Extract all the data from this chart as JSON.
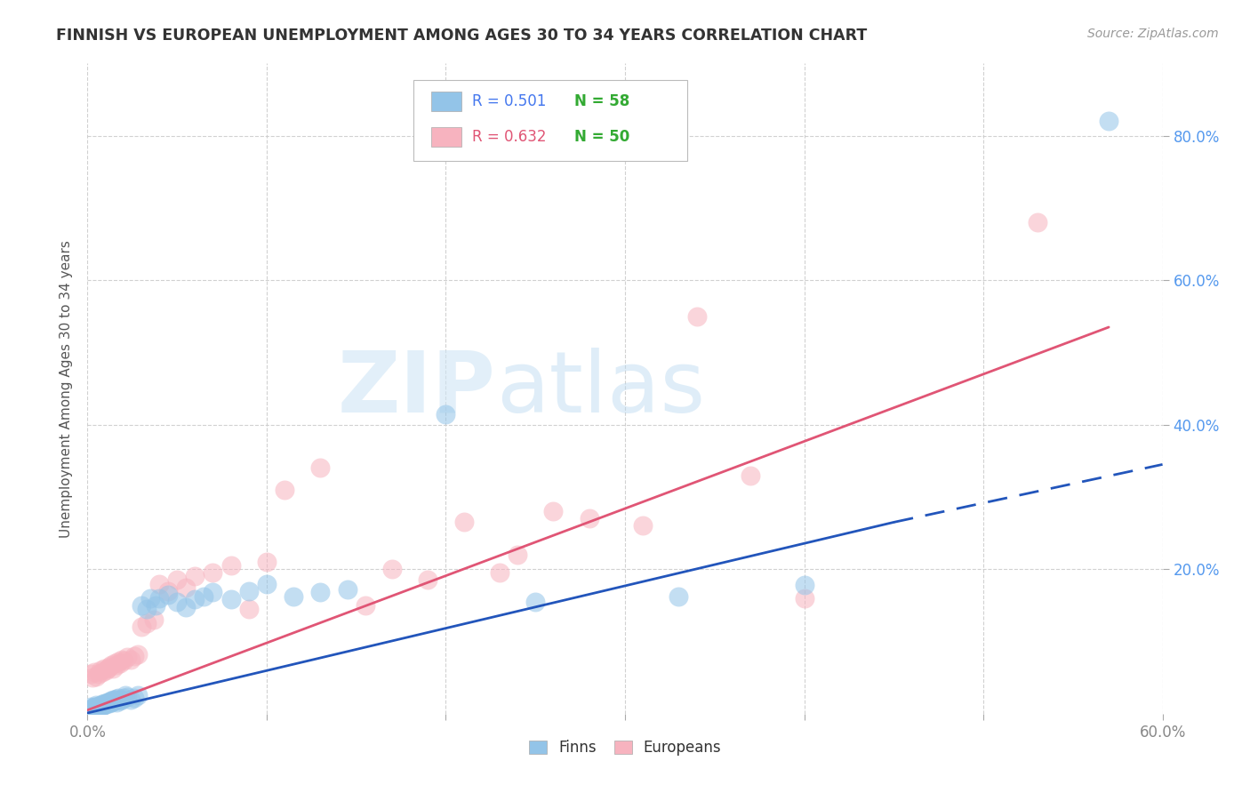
{
  "title": "FINNISH VS EUROPEAN UNEMPLOYMENT AMONG AGES 30 TO 34 YEARS CORRELATION CHART",
  "source": "Source: ZipAtlas.com",
  "ylabel": "Unemployment Among Ages 30 to 34 years",
  "xlim": [
    0.0,
    0.6
  ],
  "ylim": [
    0.0,
    0.9
  ],
  "xtick_positions": [
    0.0,
    0.1,
    0.2,
    0.3,
    0.4,
    0.5,
    0.6
  ],
  "xtick_labels_show": [
    "0.0%",
    "",
    "",
    "",
    "",
    "",
    "60.0%"
  ],
  "ytick_positions": [
    0.2,
    0.4,
    0.6,
    0.8
  ],
  "ytick_labels": [
    "20.0%",
    "40.0%",
    "60.0%",
    "80.0%"
  ],
  "finns_R": 0.501,
  "finns_N": 58,
  "europeans_R": 0.632,
  "europeans_N": 50,
  "finns_color": "#93c4e8",
  "europeans_color": "#f7b3bf",
  "finns_line_color": "#2255bb",
  "europeans_line_color": "#e05575",
  "title_color": "#333333",
  "source_color": "#999999",
  "watermark_zip_color": "#cde0f0",
  "watermark_atlas_color": "#cde0f0",
  "background_color": "#ffffff",
  "grid_color": "#cccccc",
  "finns_x": [
    0.002,
    0.003,
    0.004,
    0.005,
    0.005,
    0.006,
    0.006,
    0.007,
    0.007,
    0.008,
    0.008,
    0.009,
    0.009,
    0.01,
    0.01,
    0.011,
    0.011,
    0.012,
    0.012,
    0.013,
    0.013,
    0.014,
    0.014,
    0.015,
    0.015,
    0.016,
    0.016,
    0.017,
    0.018,
    0.019,
    0.02,
    0.021,
    0.022,
    0.024,
    0.026,
    0.028,
    0.03,
    0.033,
    0.035,
    0.038,
    0.04,
    0.045,
    0.05,
    0.055,
    0.06,
    0.065,
    0.07,
    0.08,
    0.09,
    0.1,
    0.115,
    0.13,
    0.145,
    0.2,
    0.25,
    0.33,
    0.4,
    0.57
  ],
  "finns_y": [
    0.01,
    0.008,
    0.009,
    0.012,
    0.01,
    0.009,
    0.011,
    0.01,
    0.012,
    0.011,
    0.013,
    0.012,
    0.014,
    0.013,
    0.015,
    0.014,
    0.016,
    0.015,
    0.017,
    0.016,
    0.018,
    0.017,
    0.019,
    0.018,
    0.02,
    0.016,
    0.021,
    0.022,
    0.018,
    0.02,
    0.022,
    0.025,
    0.023,
    0.02,
    0.022,
    0.025,
    0.15,
    0.145,
    0.16,
    0.15,
    0.16,
    0.165,
    0.155,
    0.148,
    0.158,
    0.162,
    0.168,
    0.158,
    0.17,
    0.18,
    0.162,
    0.168,
    0.172,
    0.415,
    0.155,
    0.162,
    0.178,
    0.82
  ],
  "europeans_x": [
    0.002,
    0.003,
    0.004,
    0.005,
    0.006,
    0.007,
    0.008,
    0.009,
    0.01,
    0.011,
    0.012,
    0.013,
    0.014,
    0.015,
    0.016,
    0.017,
    0.018,
    0.019,
    0.02,
    0.022,
    0.024,
    0.026,
    0.028,
    0.03,
    0.033,
    0.037,
    0.04,
    0.045,
    0.05,
    0.055,
    0.06,
    0.07,
    0.08,
    0.09,
    0.1,
    0.11,
    0.13,
    0.155,
    0.17,
    0.19,
    0.21,
    0.23,
    0.24,
    0.26,
    0.28,
    0.31,
    0.34,
    0.37,
    0.4,
    0.53
  ],
  "europeans_y": [
    0.055,
    0.05,
    0.058,
    0.052,
    0.055,
    0.06,
    0.058,
    0.062,
    0.06,
    0.063,
    0.065,
    0.068,
    0.062,
    0.07,
    0.068,
    0.072,
    0.07,
    0.075,
    0.073,
    0.078,
    0.075,
    0.08,
    0.082,
    0.12,
    0.125,
    0.13,
    0.18,
    0.17,
    0.185,
    0.175,
    0.19,
    0.195,
    0.205,
    0.145,
    0.21,
    0.31,
    0.34,
    0.15,
    0.2,
    0.185,
    0.265,
    0.195,
    0.22,
    0.28,
    0.27,
    0.26,
    0.55,
    0.33,
    0.16,
    0.68
  ],
  "finns_line_x_start": 0.0,
  "finns_line_x_solid_end": 0.45,
  "finns_line_x_end": 0.6,
  "finns_line_y_start": 0.001,
  "finns_line_y_solid_end": 0.265,
  "finns_line_y_end": 0.345,
  "europeans_line_x_start": 0.0,
  "europeans_line_x_end": 0.57,
  "europeans_line_y_start": 0.005,
  "europeans_line_y_end": 0.535
}
